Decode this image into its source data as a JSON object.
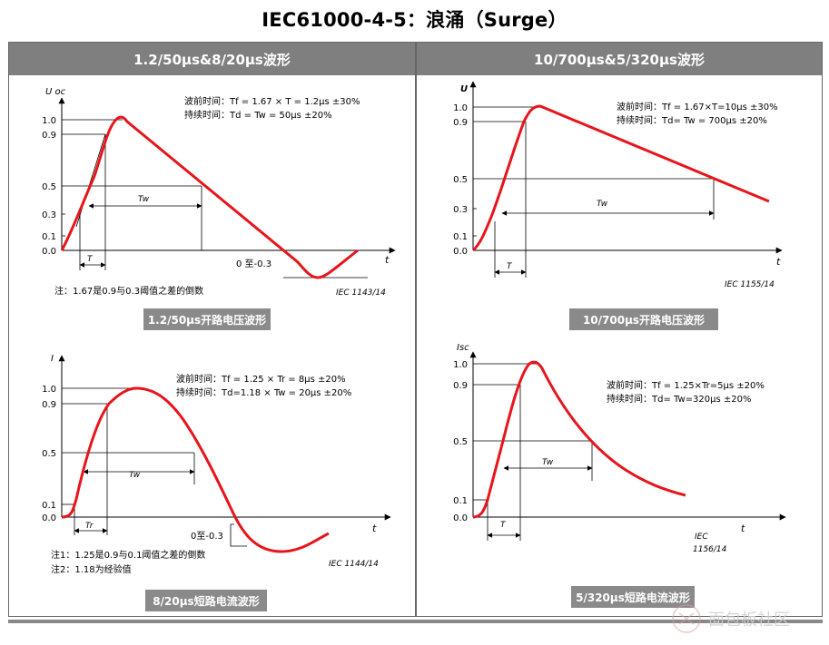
{
  "title": "IEC61000-4-5：浪涌（Surge）",
  "headers": {
    "left": "1.2/50μs&8/20μs波形",
    "right": "10/700μs&5/320μs波形"
  },
  "panels": {
    "voltage_1_2_50": {
      "caption": "1.2/50μs开路电压波形",
      "y_label": "U oc",
      "t_label": "t",
      "ticks": [
        "1.0",
        "0.9",
        "0.5",
        "0.3",
        "0.1",
        "0.0"
      ],
      "front_line": "波前时间：Tf = 1.67 × T = 1.2μs ±30%",
      "duration_line": "持续时间：Td = Tw = 50μs ±20%",
      "tw_label": "Tw",
      "t_mark": "T",
      "undershoot": "0 至-0.3",
      "ref": "IEC  1143/14",
      "note": "注：1.67是0.9与0.3阈值之差的倒数"
    },
    "current_8_20": {
      "caption": "8/20μs短路电流波形",
      "y_label": "I",
      "t_label": "t",
      "ticks": [
        "1.0",
        "0.9",
        "0.5",
        "0.1",
        "0.0"
      ],
      "front_line": "波前时间：Tf = 1.25 × Tr = 8μs ±20%",
      "duration_line": "持续时间：Td=1.18 × Tw = 20μs ±20%",
      "tw_label": "Tw",
      "tr_mark": "Tr",
      "undershoot": "0至-0.3",
      "ref": "IEC  1144/14",
      "note1": "注1：1.25是0.9与0.1阈值之差的倒数",
      "note2": "注2：1.18为经验值"
    },
    "voltage_10_700": {
      "caption": "10/700μs开路电压波形",
      "y_label": "U",
      "t_label": "t",
      "ticks": [
        "1.0",
        "0.9",
        "0.5",
        "0.3",
        "0.1",
        "0.0"
      ],
      "front_line": "波前时间：Tf = 1.67×T=10μs ±30%",
      "duration_line": "持续时间：Td= Tw = 700μs ±20%",
      "tw_label": "Tw",
      "t_mark": "T",
      "ref": "IEC  1155/14"
    },
    "current_5_320": {
      "caption": "5/320μs短路电流波形",
      "y_label": "Isc",
      "t_label": "t",
      "ticks": [
        "1.0",
        "0.9",
        "0.5",
        "0.1",
        "0.0"
      ],
      "front_line": "波前时间：Tf = 1.25×Tr=5μs ±20%",
      "duration_line": "持续时间：Td= Tw=320μs ±20%",
      "tw_label": "Tw",
      "t_mark": "T",
      "ref_1": "IEC",
      "ref_2": "1156/14"
    }
  },
  "watermark": "面包板社区",
  "colors": {
    "curve": "#e8141b",
    "header_bg": "#7f7f7f",
    "caption_bg": "#8a8a8a"
  }
}
